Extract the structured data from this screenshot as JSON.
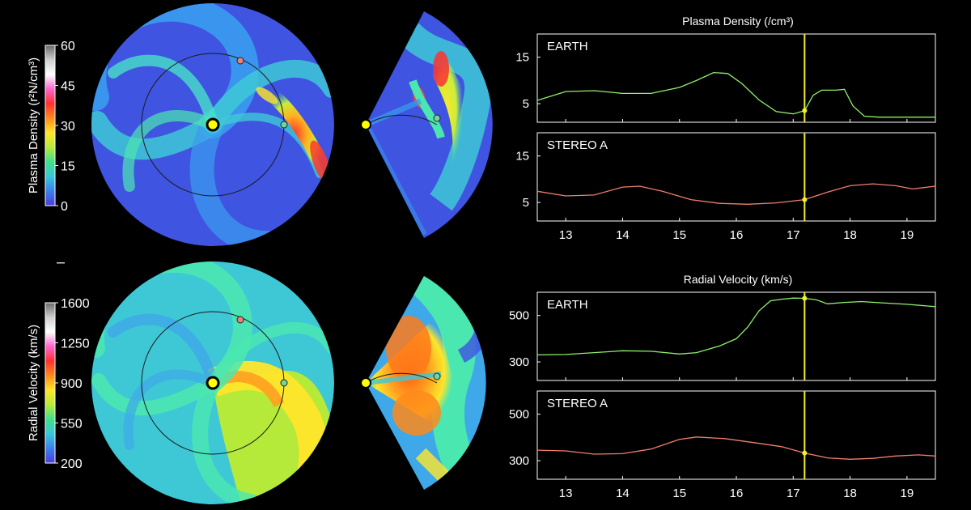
{
  "colors": {
    "background": "#000000",
    "frame": "#ffffff",
    "earth_line": "#8ef06a",
    "stereo_line": "#f07f6a",
    "time_marker": "#f2ee2a",
    "sun": "#ffff00",
    "earth_marker": "#6fd6a0",
    "stereo_marker": "#f07f7f"
  },
  "colorbars": [
    {
      "label": "Plasma Density (r²N/cm³)",
      "ticks": [
        "60",
        "45",
        "30",
        "15",
        "0"
      ],
      "tick_values": [
        60,
        45,
        30,
        15,
        0
      ],
      "range": [
        0,
        60
      ],
      "stops": [
        "#4a3fd6",
        "#3a7ff0",
        "#39c8d8",
        "#3fe08a",
        "#b6ea3a",
        "#ffe62a",
        "#ff8a1a",
        "#ff3030",
        "#ff66cc",
        "#ffffff",
        "#cfcfcf",
        "#6a6a6a"
      ]
    },
    {
      "label": "Radial Velocity (km/s)",
      "ticks": [
        "1600",
        "1250",
        "900",
        "550",
        "200"
      ],
      "tick_values": [
        1600,
        1250,
        900,
        550,
        200
      ],
      "range": [
        200,
        1600
      ],
      "stops": [
        "#4a3fd6",
        "#3a7ff0",
        "#39c8d8",
        "#3fe08a",
        "#b6ea3a",
        "#ffe62a",
        "#ff8a1a",
        "#ff3030",
        "#ff66cc",
        "#ffffff",
        "#cfcfcf",
        "#6a6a6a"
      ]
    }
  ],
  "maps": [
    {
      "variable": "density",
      "sun": "sun",
      "bodies": [
        "earth",
        "stereo-a"
      ]
    },
    {
      "variable": "velocity",
      "sun": "sun",
      "bodies": [
        "earth",
        "stereo-a"
      ]
    }
  ],
  "panel_titles": [
    "Plasma Density (/cm³)",
    "Radial Velocity (km/s)"
  ],
  "chart_data": [
    {
      "type": "line",
      "title": "Plasma Density (/cm³)",
      "label": "EARTH",
      "xlim": [
        12.5,
        19.5
      ],
      "ylim": [
        1,
        20
      ],
      "yticks": [
        15,
        5
      ],
      "xticks": [
        13,
        14,
        15,
        16,
        17,
        18,
        19
      ],
      "marker_x": 17.2,
      "series": [
        {
          "color": "#8ef06a",
          "x": [
            12.5,
            13.0,
            13.5,
            14.0,
            14.5,
            15.0,
            15.3,
            15.6,
            15.85,
            16.1,
            16.4,
            16.7,
            17.0,
            17.2,
            17.35,
            17.5,
            17.75,
            17.9,
            18.05,
            18.25,
            18.5,
            19.0,
            19.5
          ],
          "y": [
            5.7,
            7.6,
            7.8,
            7.2,
            7.2,
            8.5,
            10.0,
            11.7,
            11.5,
            9.3,
            5.8,
            3.3,
            2.8,
            3.5,
            6.8,
            7.9,
            7.9,
            8.1,
            4.5,
            2.3,
            2.1,
            2.1,
            2.1
          ]
        }
      ]
    },
    {
      "type": "line",
      "label": "STEREO A",
      "xlim": [
        12.5,
        19.5
      ],
      "ylim": [
        1,
        20
      ],
      "yticks": [
        15,
        5
      ],
      "xticks": [
        13,
        14,
        15,
        16,
        17,
        18,
        19
      ],
      "xticklabels": [
        "13",
        "14",
        "15",
        "16",
        "17",
        "18",
        "19"
      ],
      "marker_x": 17.2,
      "series": [
        {
          "color": "#f07f6a",
          "x": [
            12.5,
            13.0,
            13.5,
            14.0,
            14.3,
            14.7,
            15.2,
            15.7,
            16.2,
            16.7,
            17.2,
            17.6,
            18.0,
            18.4,
            18.8,
            19.1,
            19.5
          ],
          "y": [
            7.4,
            6.4,
            6.6,
            8.3,
            8.5,
            7.4,
            5.6,
            4.8,
            4.6,
            4.9,
            5.6,
            7.2,
            8.6,
            9.0,
            8.6,
            7.9,
            8.5
          ]
        }
      ]
    },
    {
      "type": "line",
      "title": "Radial Velocity (km/s)",
      "label": "EARTH",
      "xlim": [
        12.5,
        19.5
      ],
      "ylim": [
        220,
        600
      ],
      "yticks": [
        500,
        300
      ],
      "xticks": [
        13,
        14,
        15,
        16,
        17,
        18,
        19
      ],
      "marker_x": 17.2,
      "series": [
        {
          "color": "#8ef06a",
          "x": [
            12.5,
            13.0,
            13.5,
            14.0,
            14.5,
            15.0,
            15.3,
            15.7,
            16.0,
            16.2,
            16.4,
            16.6,
            16.8,
            17.0,
            17.2,
            17.4,
            17.6,
            17.9,
            18.2,
            18.5,
            19.0,
            19.5
          ],
          "y": [
            330,
            332,
            340,
            348,
            346,
            334,
            340,
            368,
            400,
            450,
            520,
            563,
            570,
            575,
            574,
            568,
            550,
            556,
            560,
            555,
            548,
            538
          ]
        }
      ]
    },
    {
      "type": "line",
      "label": "STEREO A",
      "xlim": [
        12.5,
        19.5
      ],
      "ylim": [
        220,
        600
      ],
      "yticks": [
        500,
        300
      ],
      "xticks": [
        13,
        14,
        15,
        16,
        17,
        18,
        19
      ],
      "xticklabels": [
        "13",
        "14",
        "15",
        "16",
        "17",
        "18",
        "19"
      ],
      "marker_x": 17.2,
      "series": [
        {
          "color": "#f07f6a",
          "x": [
            12.5,
            13.0,
            13.5,
            14.0,
            14.5,
            15.0,
            15.3,
            15.8,
            16.3,
            16.8,
            17.2,
            17.6,
            18.0,
            18.4,
            18.8,
            19.2,
            19.5
          ],
          "y": [
            345,
            342,
            328,
            330,
            350,
            392,
            402,
            395,
            378,
            360,
            333,
            312,
            306,
            310,
            320,
            325,
            320
          ]
        }
      ]
    }
  ]
}
